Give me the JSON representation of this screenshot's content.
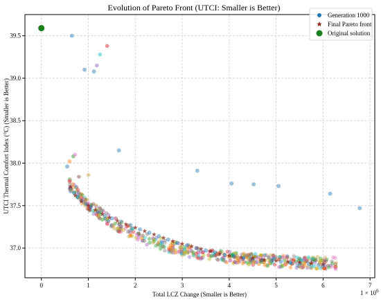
{
  "chart_data": {
    "type": "scatter",
    "title": "Evolution of Pareto Front (UTCI: Smaller is Better)",
    "xlabel": "Total LCZ Change (Smaller is Better)",
    "ylabel": "UTCI Thermal Comfort Index (°C) (Smaller is Better)",
    "x_offset_label": "1e6",
    "x_unit": "x 1e6",
    "xlim": [
      -0.35,
      7.1
    ],
    "ylim": [
      36.65,
      39.75
    ],
    "xticks": [
      0,
      1,
      2,
      3,
      4,
      5,
      6,
      7
    ],
    "xtick_labels": [
      "0",
      "1",
      "2",
      "3",
      "4",
      "5",
      "6",
      "7"
    ],
    "yticks": [
      37.0,
      37.5,
      38.0,
      38.5,
      39.0,
      39.5
    ],
    "ytick_labels": [
      "37.0",
      "37.5",
      "38.0",
      "38.5",
      "39.0",
      "39.5"
    ],
    "grid": true,
    "legend_position": "top-right",
    "series": [
      {
        "name": "Generation 1000",
        "color": "#1f77b4",
        "marker": "circle",
        "points": [
          [
            0.65,
            39.5
          ],
          [
            0.92,
            39.1
          ],
          [
            1.12,
            39.08
          ],
          [
            1.65,
            38.15
          ],
          [
            0.55,
            37.96
          ],
          [
            3.32,
            37.91
          ],
          [
            4.05,
            37.76
          ],
          [
            4.52,
            37.75
          ],
          [
            5.05,
            37.73
          ],
          [
            6.15,
            37.64
          ],
          [
            6.78,
            37.47
          ],
          [
            0.62,
            37.7
          ],
          [
            0.7,
            37.65
          ],
          [
            0.78,
            37.6
          ],
          [
            0.85,
            37.56
          ],
          [
            0.95,
            37.52
          ],
          [
            1.05,
            37.48
          ],
          [
            1.2,
            37.43
          ],
          [
            1.35,
            37.38
          ],
          [
            1.5,
            37.35
          ],
          [
            1.7,
            37.31
          ],
          [
            1.9,
            37.27
          ],
          [
            2.1,
            37.22
          ],
          [
            2.3,
            37.18
          ],
          [
            2.5,
            37.14
          ],
          [
            2.7,
            37.1
          ],
          [
            2.9,
            37.06
          ],
          [
            3.1,
            37.03
          ],
          [
            3.3,
            37.0
          ],
          [
            3.5,
            36.97
          ],
          [
            3.7,
            36.95
          ],
          [
            3.9,
            36.92
          ],
          [
            4.1,
            36.9
          ],
          [
            4.3,
            36.88
          ],
          [
            4.5,
            36.87
          ],
          [
            4.7,
            36.86
          ],
          [
            4.9,
            36.85
          ],
          [
            5.1,
            36.84
          ],
          [
            5.3,
            36.83
          ],
          [
            5.5,
            36.82
          ],
          [
            5.7,
            36.81
          ],
          [
            5.9,
            36.8
          ],
          [
            6.0,
            36.8
          ]
        ]
      },
      {
        "name": "Final Pareto front",
        "color": "#8b2a1c",
        "marker": "star",
        "points": [
          [
            0.62,
            37.72
          ],
          [
            0.72,
            37.62
          ],
          [
            0.85,
            37.55
          ],
          [
            1.0,
            37.5
          ],
          [
            1.15,
            37.45
          ],
          [
            1.3,
            37.4
          ],
          [
            1.45,
            37.36
          ],
          [
            1.62,
            37.32
          ],
          [
            1.8,
            37.28
          ],
          [
            2.0,
            37.24
          ],
          [
            2.2,
            37.2
          ],
          [
            2.4,
            37.16
          ],
          [
            2.6,
            37.12
          ],
          [
            2.8,
            37.08
          ],
          [
            3.0,
            37.05
          ],
          [
            3.2,
            37.02
          ],
          [
            3.4,
            36.99
          ],
          [
            3.6,
            36.96
          ],
          [
            3.8,
            36.93
          ],
          [
            4.0,
            36.91
          ],
          [
            4.25,
            36.89
          ],
          [
            4.5,
            36.88
          ],
          [
            4.75,
            36.86
          ],
          [
            5.0,
            36.85
          ],
          [
            5.25,
            36.84
          ],
          [
            5.5,
            36.83
          ],
          [
            5.75,
            36.82
          ],
          [
            6.0,
            36.81
          ]
        ]
      },
      {
        "name": "Original solution",
        "color": "#1a7f1a",
        "marker": "circle-large",
        "points": [
          [
            0.0,
            39.59
          ]
        ]
      }
    ],
    "earlier_generations": {
      "colors": [
        "#2ca02c",
        "#9467bd",
        "#8c564b",
        "#e377c2",
        "#bcbd22",
        "#17becf",
        "#ff7f0e",
        "#7f7f7f",
        "#d62728",
        "#c9a94a"
      ],
      "outliers": [
        [
          0.68,
          38.08
        ],
        [
          0.72,
          38.1
        ],
        [
          0.6,
          38.02
        ],
        [
          1.0,
          37.86
        ],
        [
          0.8,
          37.84
        ],
        [
          1.25,
          39.28
        ],
        [
          1.4,
          39.38
        ],
        [
          1.18,
          39.15
        ]
      ]
    }
  }
}
